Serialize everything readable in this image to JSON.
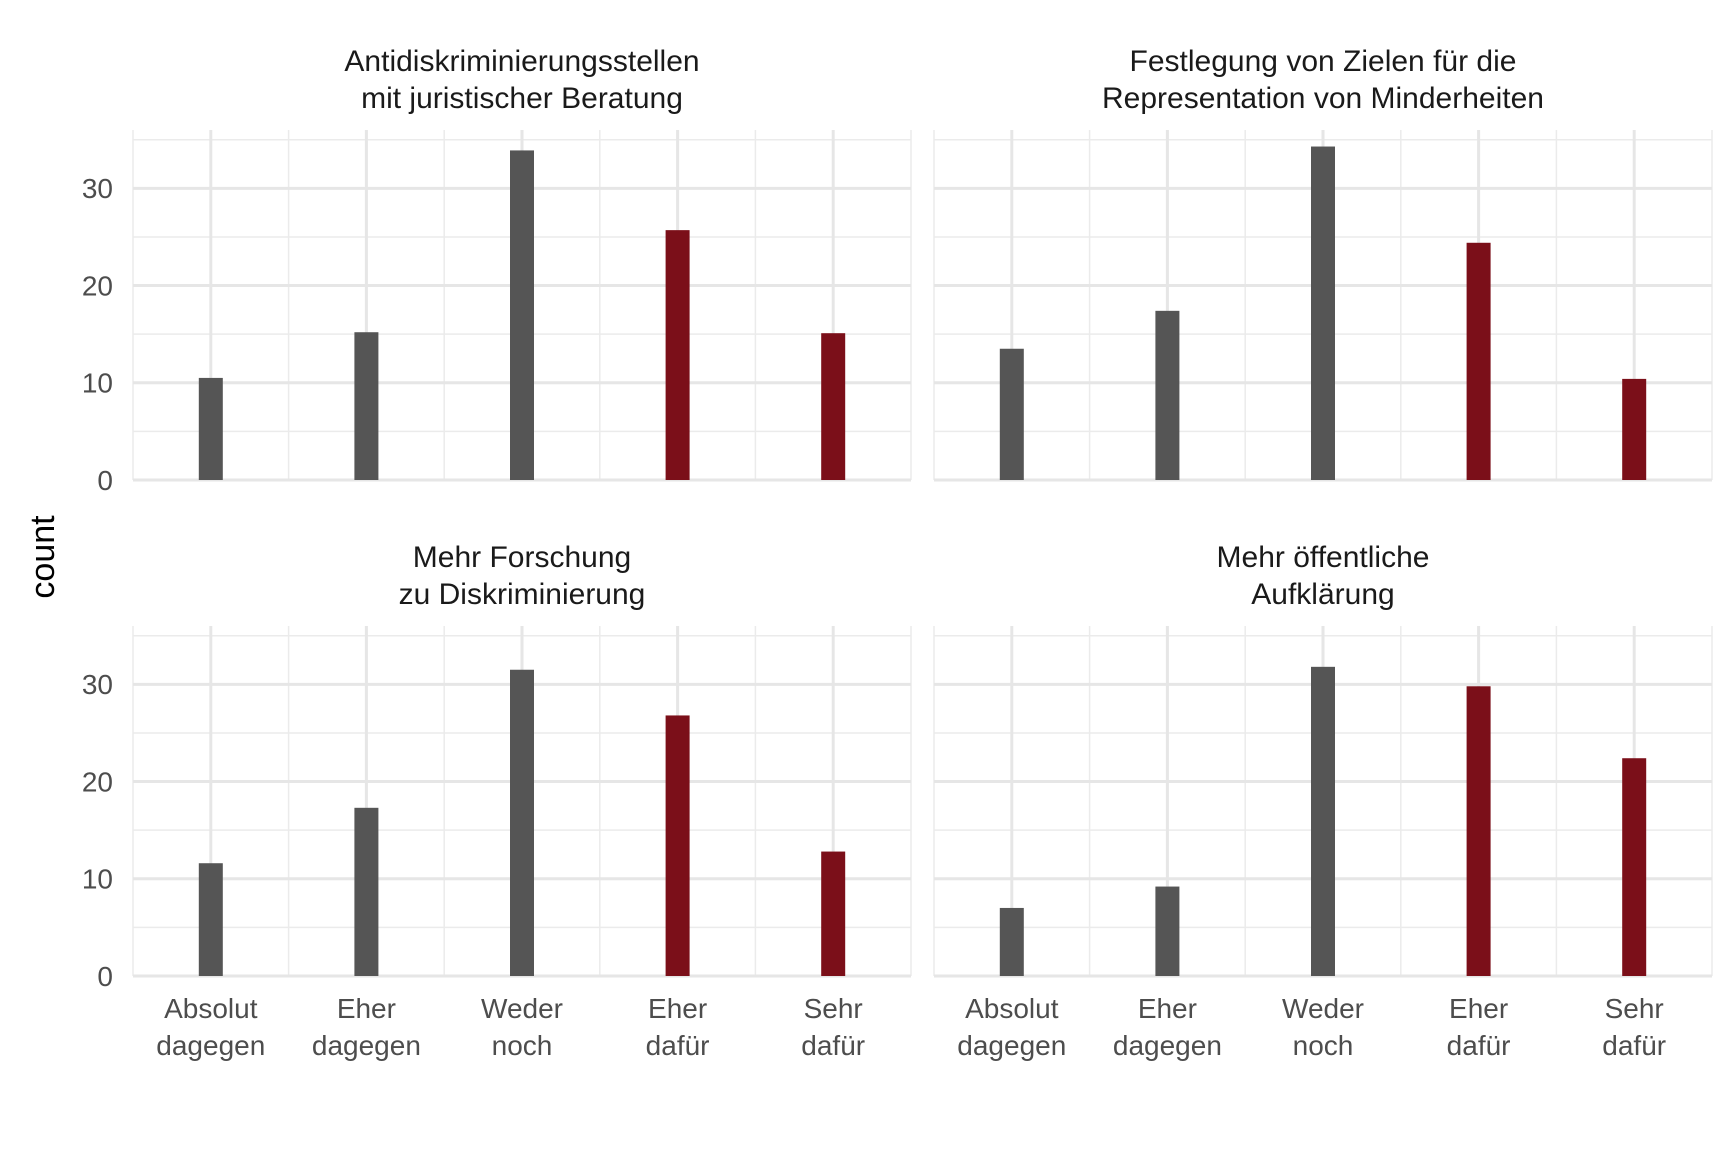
{
  "chart_data": {
    "type": "bar",
    "layout": "facet-grid-2x2",
    "ylabel": "count",
    "xlabel": "",
    "ylim": [
      0,
      36
    ],
    "yticks": [
      0,
      10,
      20,
      30
    ],
    "grid": true,
    "categories": [
      [
        "Absolut",
        "dagegen"
      ],
      [
        "Eher",
        "dagegen"
      ],
      [
        "Weder",
        "noch"
      ],
      [
        "Eher",
        "dafür"
      ],
      [
        "Sehr",
        "dafür"
      ]
    ],
    "colors": [
      "#555555",
      "#555555",
      "#555555",
      "#7b0f19",
      "#7b0f19"
    ],
    "panels": [
      {
        "title": [
          "Antidiskriminierungsstellen",
          "mit juristischer Beratung"
        ],
        "values": [
          10.5,
          15.2,
          33.9,
          25.7,
          15.1
        ]
      },
      {
        "title": [
          "Festlegung von Zielen für die",
          "Representation von Minderheiten"
        ],
        "values": [
          13.5,
          17.4,
          34.3,
          24.4,
          10.4
        ]
      },
      {
        "title": [
          "Mehr Forschung",
          "zu Diskriminierung"
        ],
        "values": [
          11.6,
          17.3,
          31.5,
          26.8,
          12.8
        ]
      },
      {
        "title": [
          "Mehr öffentliche",
          "Aufklärung"
        ],
        "values": [
          7.0,
          9.2,
          31.8,
          29.8,
          22.4
        ]
      }
    ]
  }
}
